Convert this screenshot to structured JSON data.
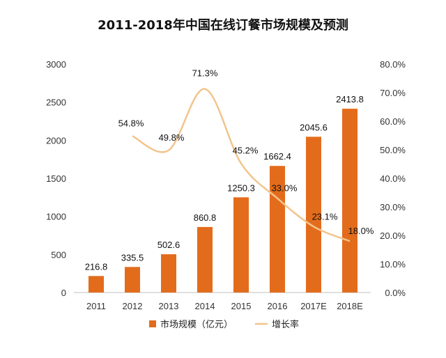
{
  "chart_data": {
    "type": "bar",
    "title": "2011-2018年中国在线订餐市场规模及预测",
    "categories": [
      "2011",
      "2012",
      "2013",
      "2014",
      "2015",
      "2016",
      "2017E",
      "2018E"
    ],
    "series": [
      {
        "name": "市场规模（亿元）",
        "type": "bar",
        "axis": "left",
        "color": "#e36c1c",
        "values": [
          216.8,
          335.5,
          502.6,
          860.8,
          1250.3,
          1662.4,
          2045.6,
          2413.8
        ],
        "labels": [
          "216.8",
          "335.5",
          "502.6",
          "860.8",
          "1250.3",
          "1662.4",
          "2045.6",
          "2413.8"
        ]
      },
      {
        "name": "增长率",
        "type": "line",
        "smooth": true,
        "axis": "right",
        "color": "#f2c48d",
        "values": [
          null,
          54.8,
          49.8,
          71.3,
          45.2,
          33.0,
          23.1,
          18.0
        ],
        "labels": [
          null,
          "54.8%",
          "49.8%",
          "71.3%",
          "45.2%",
          "33.0%",
          "23.1%",
          "18.0%"
        ]
      }
    ],
    "y_left": {
      "range": [
        0,
        3000
      ],
      "ticks": [
        0,
        500,
        1000,
        1500,
        2000,
        2500,
        3000
      ],
      "tick_labels": [
        "0",
        "500",
        "1000",
        "1500",
        "2000",
        "2500",
        "3000"
      ]
    },
    "y_right": {
      "range": [
        0,
        80
      ],
      "ticks": [
        0,
        10,
        20,
        30,
        40,
        50,
        60,
        70,
        80
      ],
      "tick_labels": [
        "0.0%",
        "10.0%",
        "20.0%",
        "30.0%",
        "40.0%",
        "50.0%",
        "60.0%",
        "70.0%",
        "80.0%"
      ]
    },
    "grid": false,
    "legend_position": "bottom"
  }
}
